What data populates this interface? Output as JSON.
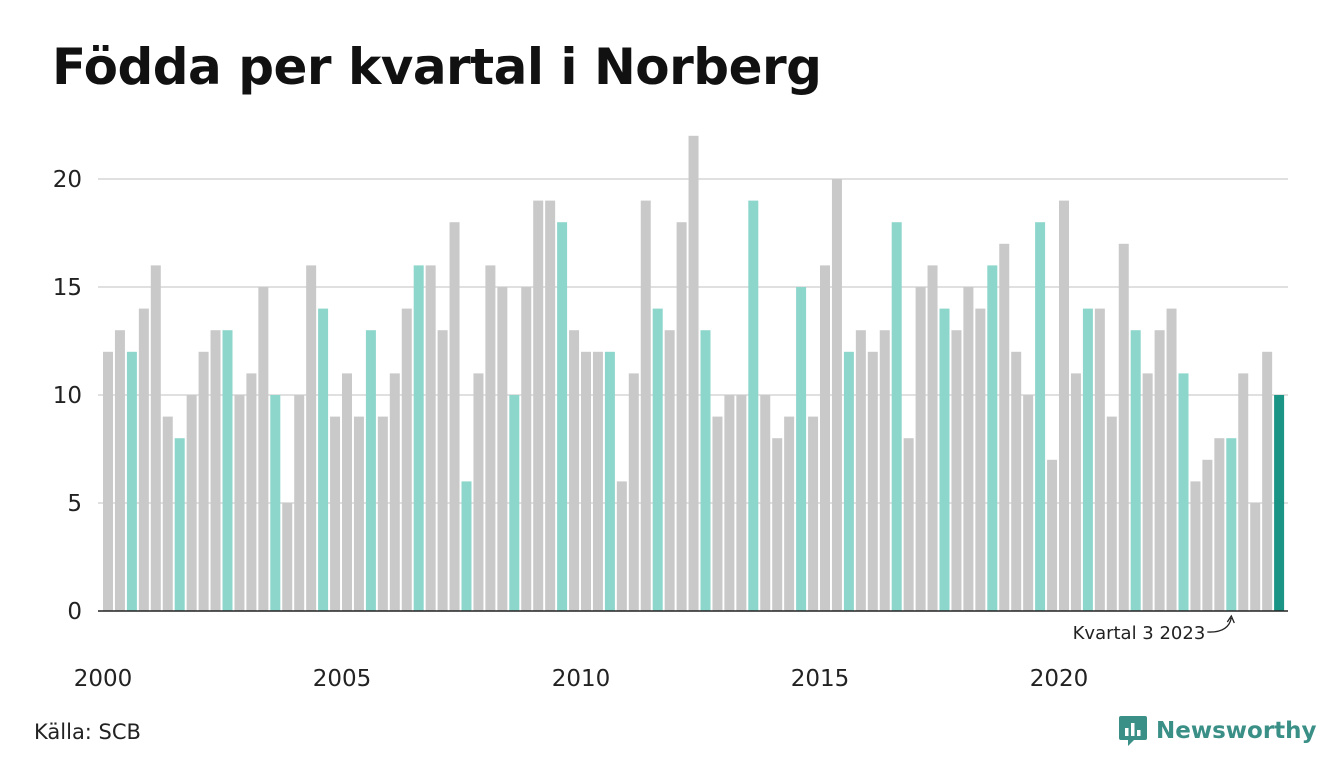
{
  "chart_data": {
    "type": "bar",
    "title": "Födda per kvartal i Norberg",
    "xlabel": "",
    "ylabel": "",
    "ylim": [
      0,
      22
    ],
    "y_ticks": [
      "0",
      "5",
      "10",
      "15",
      "20"
    ],
    "x_tick_labels": [
      "2000",
      "2005",
      "2010",
      "2015",
      "2020"
    ],
    "grid": true,
    "categories": [
      "2000 K1",
      "2000 K2",
      "2000 K3",
      "2000 K4",
      "2001 K1",
      "2001 K2",
      "2001 K3",
      "2001 K4",
      "2002 K1",
      "2002 K2",
      "2002 K3",
      "2002 K4",
      "2003 K1",
      "2003 K2",
      "2003 K3",
      "2003 K4",
      "2004 K1",
      "2004 K2",
      "2004 K3",
      "2004 K4",
      "2005 K1",
      "2005 K2",
      "2005 K3",
      "2005 K4",
      "2006 K1",
      "2006 K2",
      "2006 K3",
      "2006 K4",
      "2007 K1",
      "2007 K2",
      "2007 K3",
      "2007 K4",
      "2008 K1",
      "2008 K2",
      "2008 K3",
      "2008 K4",
      "2009 K1",
      "2009 K2",
      "2009 K3",
      "2009 K4",
      "2010 K1",
      "2010 K2",
      "2010 K3",
      "2010 K4",
      "2011 K1",
      "2011 K2",
      "2011 K3",
      "2011 K4",
      "2012 K1",
      "2012 K2",
      "2012 K3",
      "2012 K4",
      "2013 K1",
      "2013 K2",
      "2013 K3",
      "2013 K4",
      "2014 K1",
      "2014 K2",
      "2014 K3",
      "2014 K4",
      "2015 K1",
      "2015 K2",
      "2015 K3",
      "2015 K4",
      "2016 K1",
      "2016 K2",
      "2016 K3",
      "2016 K4",
      "2017 K1",
      "2017 K2",
      "2017 K3",
      "2017 K4",
      "2018 K1",
      "2018 K2",
      "2018 K3",
      "2018 K4",
      "2019 K1",
      "2019 K2",
      "2019 K3",
      "2019 K4",
      "2020 K1",
      "2020 K2",
      "2020 K3",
      "2020 K4",
      "2021 K1",
      "2021 K2",
      "2021 K3",
      "2021 K4",
      "2022 K1",
      "2022 K2",
      "2022 K3",
      "2022 K4",
      "2023 K1",
      "2023 K2",
      "2023 K3",
      "2023 K4",
      "2024 K1",
      "2024 K2",
      "2024 K3"
    ],
    "values": [
      12,
      13,
      12,
      14,
      16,
      9,
      8,
      10,
      12,
      13,
      13,
      10,
      11,
      15,
      10,
      5,
      10,
      16,
      14,
      9,
      11,
      9,
      13,
      9,
      11,
      14,
      16,
      16,
      13,
      18,
      6,
      11,
      16,
      15,
      10,
      15,
      19,
      19,
      18,
      13,
      12,
      12,
      12,
      6,
      11,
      19,
      14,
      13,
      18,
      22,
      13,
      9,
      10,
      10,
      19,
      10,
      8,
      9,
      15,
      9,
      16,
      20,
      12,
      13,
      12,
      13,
      18,
      8,
      15,
      16,
      14,
      13,
      15,
      14,
      16,
      17,
      12,
      10,
      18,
      7,
      19,
      11,
      14,
      14,
      9,
      17,
      13,
      11,
      13,
      14,
      11,
      6,
      7,
      8,
      8,
      11,
      5,
      12,
      10
    ],
    "highlight_quarter": 3,
    "colors": {
      "default": "#c9c9c9",
      "highlight": "#8dd6cc",
      "latest": "#1a9484",
      "grid": "#e0e0e0",
      "axis": "#222222"
    },
    "annotation": {
      "text": "Kvartal 3 2023",
      "index": 94
    }
  },
  "footer": {
    "source": "Källa: SCB",
    "brand": "Newsworthy"
  },
  "brand_icon": "bar-chart-speech-bubble-icon"
}
